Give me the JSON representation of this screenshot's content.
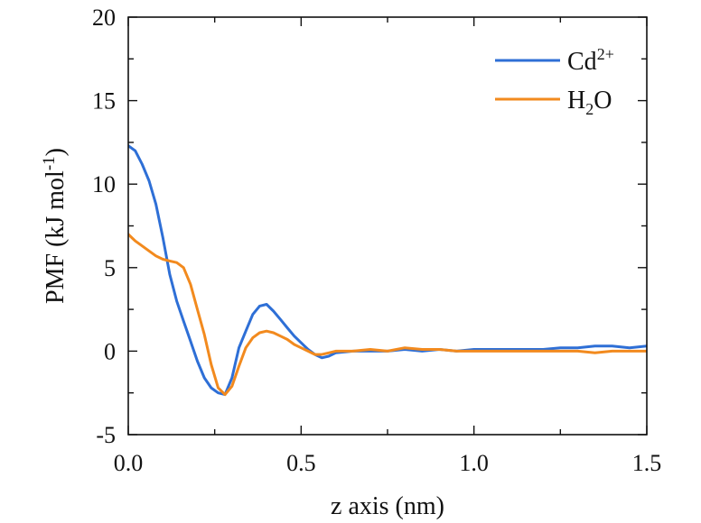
{
  "chart_data": {
    "type": "line",
    "title": "",
    "xlabel": "z axis (nm)",
    "ylabel": {
      "pre": "PMF (kJ mol",
      "sup": "-1",
      "post": ")"
    },
    "xlim": [
      0.0,
      1.5
    ],
    "ylim": [
      -5,
      20
    ],
    "xticks": [
      0.0,
      0.5,
      1.0,
      1.5
    ],
    "xtick_labels": [
      "0.0",
      "0.5",
      "1.0",
      "1.5"
    ],
    "yticks": [
      -5,
      0,
      5,
      10,
      15,
      20
    ],
    "ytick_labels": [
      "-5",
      "0",
      "5",
      "10",
      "15",
      "20"
    ],
    "grid": false,
    "legend_position": "top-right",
    "series": [
      {
        "name": "Cd2+",
        "label_base": "Cd",
        "label_sup": "2+",
        "color": "#2e6fd6",
        "x": [
          0.0,
          0.02,
          0.04,
          0.06,
          0.08,
          0.1,
          0.12,
          0.14,
          0.16,
          0.18,
          0.2,
          0.22,
          0.24,
          0.26,
          0.28,
          0.3,
          0.32,
          0.34,
          0.36,
          0.38,
          0.4,
          0.42,
          0.44,
          0.46,
          0.48,
          0.5,
          0.52,
          0.54,
          0.56,
          0.58,
          0.6,
          0.65,
          0.7,
          0.75,
          0.8,
          0.85,
          0.9,
          0.95,
          1.0,
          1.05,
          1.1,
          1.15,
          1.2,
          1.25,
          1.3,
          1.35,
          1.4,
          1.45,
          1.5
        ],
        "y": [
          12.3,
          12.0,
          11.2,
          10.2,
          8.8,
          6.8,
          4.6,
          3.0,
          1.8,
          0.6,
          -0.6,
          -1.6,
          -2.2,
          -2.5,
          -2.6,
          -1.6,
          0.2,
          1.2,
          2.2,
          2.7,
          2.8,
          2.4,
          1.9,
          1.4,
          0.9,
          0.5,
          0.1,
          -0.2,
          -0.4,
          -0.3,
          -0.1,
          0.0,
          0.0,
          0.0,
          0.1,
          0.0,
          0.1,
          0.0,
          0.1,
          0.1,
          0.1,
          0.1,
          0.1,
          0.2,
          0.2,
          0.3,
          0.3,
          0.2,
          0.3
        ]
      },
      {
        "name": "H2O",
        "label_base": "H",
        "label_sub": "2",
        "label_post": "O",
        "color": "#f28a1e",
        "x": [
          0.0,
          0.01,
          0.02,
          0.04,
          0.06,
          0.08,
          0.1,
          0.12,
          0.14,
          0.16,
          0.18,
          0.2,
          0.22,
          0.24,
          0.26,
          0.28,
          0.3,
          0.32,
          0.34,
          0.36,
          0.38,
          0.4,
          0.42,
          0.44,
          0.46,
          0.48,
          0.5,
          0.52,
          0.54,
          0.56,
          0.58,
          0.6,
          0.65,
          0.7,
          0.75,
          0.8,
          0.85,
          0.9,
          0.95,
          1.0,
          1.05,
          1.1,
          1.15,
          1.2,
          1.25,
          1.3,
          1.35,
          1.4,
          1.45,
          1.5
        ],
        "y": [
          7.0,
          6.8,
          6.6,
          6.3,
          6.0,
          5.7,
          5.5,
          5.4,
          5.3,
          5.0,
          4.0,
          2.5,
          1.0,
          -0.8,
          -2.2,
          -2.6,
          -2.1,
          -0.9,
          0.2,
          0.8,
          1.1,
          1.2,
          1.1,
          0.9,
          0.7,
          0.4,
          0.2,
          0.0,
          -0.2,
          -0.2,
          -0.1,
          0.0,
          0.0,
          0.1,
          0.0,
          0.2,
          0.1,
          0.1,
          0.0,
          0.0,
          0.0,
          0.0,
          0.0,
          0.0,
          0.0,
          0.0,
          -0.1,
          0.0,
          0.0,
          0.0
        ]
      }
    ]
  }
}
